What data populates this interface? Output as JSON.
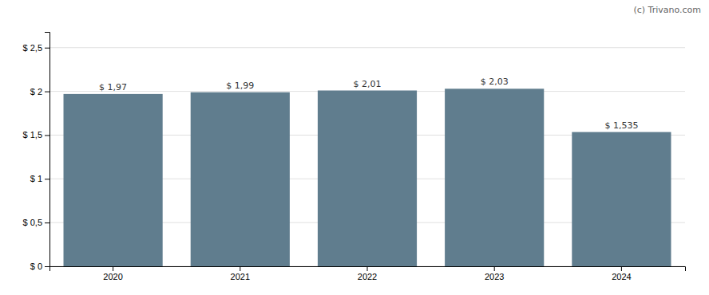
{
  "chart_data": {
    "type": "bar",
    "categories": [
      "2020",
      "2021",
      "2022",
      "2023",
      "2024"
    ],
    "values": [
      1.97,
      1.99,
      2.01,
      2.03,
      1.535
    ],
    "value_labels": [
      "$ 1,97",
      "$ 1,99",
      "$ 2,01",
      "$ 2,03",
      "$ 1,535"
    ],
    "data_labels": true,
    "color": "#607d8e",
    "ylim": [
      0,
      2.68
    ],
    "yticks": [
      {
        "value": 0,
        "label": "$ 0"
      },
      {
        "value": 0.5,
        "label": "$ 0,5"
      },
      {
        "value": 1.0,
        "label": "$ 1"
      },
      {
        "value": 1.5,
        "label": "$ 1,5"
      },
      {
        "value": 2.0,
        "label": "$ 2"
      },
      {
        "value": 2.5,
        "label": "$ 2,5"
      }
    ],
    "grid": true,
    "annotations": [
      "(c) Trivano.com"
    ]
  }
}
